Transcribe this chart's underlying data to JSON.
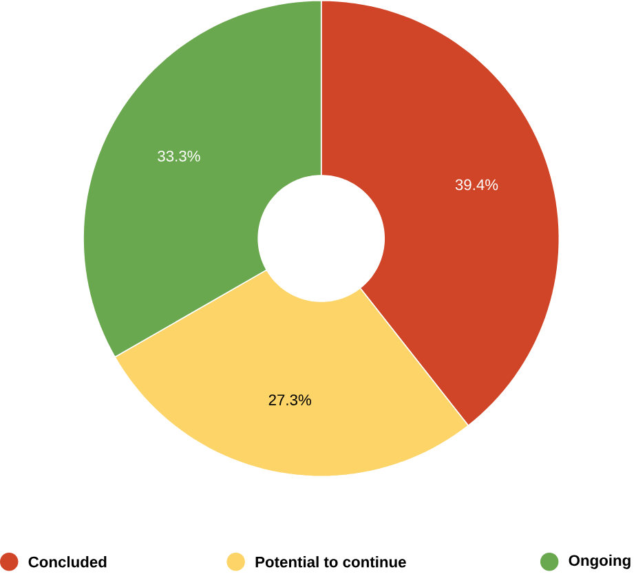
{
  "chart_data": {
    "type": "donut",
    "categories": [
      "Concluded",
      "Potential to continue",
      "Ongoing"
    ],
    "values": [
      39.4,
      27.3,
      33.3
    ],
    "colors": [
      "#d04527",
      "#fcd468",
      "#6aa84f"
    ],
    "value_labels": [
      "39.4%",
      "27.3%",
      "33.3%"
    ],
    "legend": "bottom"
  }
}
